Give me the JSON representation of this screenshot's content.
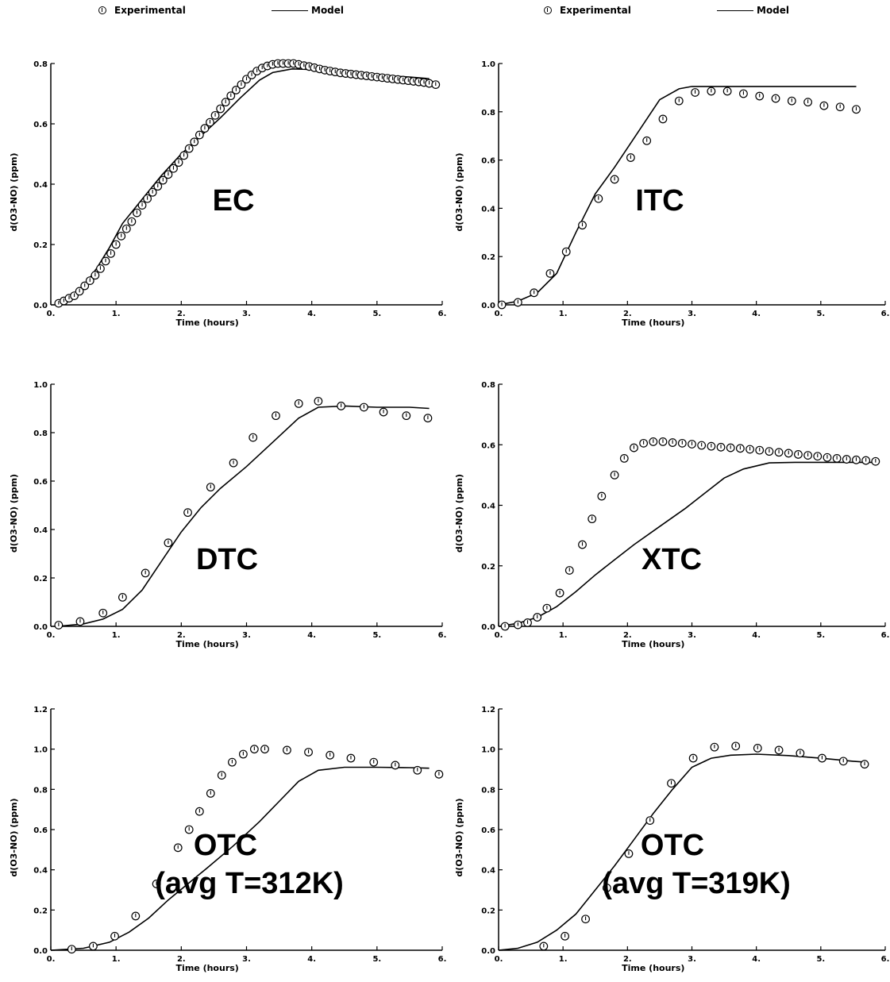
{
  "legend": {
    "experimental_label": "Experimental",
    "model_label": "Model"
  },
  "chart_data": [
    {
      "type": "scatter",
      "title": "EC",
      "xlabel": "Time (hours)",
      "ylabel": "d(O3-NO) (ppm)",
      "xlim": [
        0,
        6
      ],
      "ylim": [
        0,
        0.8
      ],
      "xticks": [
        "0.",
        "1.",
        "2.",
        "3.",
        "4.",
        "5.",
        "6."
      ],
      "yticks": [
        "0.0",
        "0.2",
        "0.4",
        "0.6",
        "0.8"
      ],
      "series": [
        {
          "name": "Experimental",
          "x": [
            0.12,
            0.2,
            0.28,
            0.36,
            0.44,
            0.52,
            0.6,
            0.68,
            0.76,
            0.84,
            0.92,
            1.0,
            1.08,
            1.16,
            1.24,
            1.32,
            1.4,
            1.48,
            1.56,
            1.64,
            1.72,
            1.8,
            1.88,
            1.96,
            2.04,
            2.12,
            2.2,
            2.28,
            2.36,
            2.44,
            2.52,
            2.6,
            2.68,
            2.76,
            2.84,
            2.92,
            3.0,
            3.08,
            3.16,
            3.24,
            3.32,
            3.4,
            3.48,
            3.56,
            3.64,
            3.72,
            3.8,
            3.88,
            3.96,
            4.04,
            4.12,
            4.2,
            4.28,
            4.36,
            4.44,
            4.52,
            4.6,
            4.68,
            4.76,
            4.84,
            4.92,
            5.0,
            5.08,
            5.16,
            5.24,
            5.32,
            5.4,
            5.48,
            5.56,
            5.64,
            5.72,
            5.8,
            5.9
          ],
          "y": [
            0.005,
            0.013,
            0.022,
            0.03,
            0.045,
            0.063,
            0.08,
            0.098,
            0.12,
            0.145,
            0.17,
            0.2,
            0.228,
            0.252,
            0.276,
            0.305,
            0.33,
            0.352,
            0.373,
            0.393,
            0.413,
            0.432,
            0.452,
            0.472,
            0.495,
            0.518,
            0.54,
            0.563,
            0.585,
            0.605,
            0.628,
            0.65,
            0.672,
            0.693,
            0.712,
            0.73,
            0.748,
            0.762,
            0.775,
            0.785,
            0.792,
            0.797,
            0.8,
            0.8,
            0.8,
            0.8,
            0.797,
            0.793,
            0.79,
            0.786,
            0.782,
            0.778,
            0.775,
            0.772,
            0.769,
            0.767,
            0.765,
            0.763,
            0.761,
            0.759,
            0.757,
            0.755,
            0.753,
            0.751,
            0.749,
            0.747,
            0.745,
            0.743,
            0.741,
            0.739,
            0.737,
            0.734,
            0.73
          ]
        },
        {
          "name": "Model",
          "x": [
            0.1,
            0.3,
            0.5,
            0.7,
            0.9,
            1.1,
            1.4,
            1.7,
            2.0,
            2.3,
            2.6,
            2.9,
            3.2,
            3.4,
            3.7,
            4.0,
            4.5,
            5.0,
            5.5,
            5.8
          ],
          "y": [
            0.005,
            0.025,
            0.06,
            0.12,
            0.19,
            0.27,
            0.35,
            0.43,
            0.5,
            0.56,
            0.62,
            0.685,
            0.745,
            0.77,
            0.782,
            0.78,
            0.77,
            0.762,
            0.755,
            0.75
          ]
        }
      ]
    },
    {
      "type": "scatter",
      "title": "ITC",
      "xlabel": "Time (hours)",
      "ylabel": "d(O3-NO) (ppm)",
      "xlim": [
        0,
        6
      ],
      "ylim": [
        0,
        1.0
      ],
      "xticks": [
        "0.",
        "1.",
        "2.",
        "3.",
        "4.",
        "5.",
        "6."
      ],
      "yticks": [
        "0.0",
        "0.2",
        "0.4",
        "0.6",
        "0.8",
        "1.0"
      ],
      "series": [
        {
          "name": "Experimental",
          "x": [
            0.05,
            0.3,
            0.55,
            0.8,
            1.05,
            1.3,
            1.55,
            1.8,
            2.05,
            2.3,
            2.55,
            2.8,
            3.05,
            3.3,
            3.55,
            3.8,
            4.05,
            4.3,
            4.55,
            4.8,
            5.05,
            5.3,
            5.55
          ],
          "y": [
            0.0,
            0.01,
            0.05,
            0.13,
            0.22,
            0.33,
            0.44,
            0.52,
            0.61,
            0.68,
            0.77,
            0.845,
            0.88,
            0.885,
            0.885,
            0.875,
            0.865,
            0.855,
            0.845,
            0.84,
            0.825,
            0.82,
            0.81
          ]
        },
        {
          "name": "Model",
          "x": [
            0.0,
            0.3,
            0.6,
            0.9,
            1.2,
            1.5,
            1.8,
            2.1,
            2.5,
            2.8,
            3.0,
            4.0,
            5.0,
            5.55
          ],
          "y": [
            0.0,
            0.015,
            0.05,
            0.13,
            0.3,
            0.46,
            0.57,
            0.69,
            0.85,
            0.895,
            0.905,
            0.905,
            0.905,
            0.905
          ]
        }
      ]
    },
    {
      "type": "scatter",
      "title": "DTC",
      "xlabel": "Time (hours)",
      "ylabel": "d(O3-NO) (ppm)",
      "xlim": [
        0,
        6
      ],
      "ylim": [
        0,
        1.0
      ],
      "xticks": [
        "0.",
        "1.",
        "2.",
        "3.",
        "4.",
        "5.",
        "6."
      ],
      "yticks": [
        "0.0",
        "0.2",
        "0.4",
        "0.6",
        "0.8",
        "1.0"
      ],
      "series": [
        {
          "name": "Experimental",
          "x": [
            0.12,
            0.45,
            0.8,
            1.1,
            1.45,
            1.8,
            2.1,
            2.45,
            2.8,
            3.1,
            3.45,
            3.8,
            4.1,
            4.45,
            4.8,
            5.1,
            5.45,
            5.78
          ],
          "y": [
            0.005,
            0.02,
            0.055,
            0.12,
            0.22,
            0.345,
            0.47,
            0.575,
            0.675,
            0.78,
            0.87,
            0.92,
            0.93,
            0.91,
            0.905,
            0.885,
            0.87,
            0.86
          ]
        },
        {
          "name": "Model",
          "x": [
            0.1,
            0.5,
            0.8,
            1.1,
            1.4,
            1.7,
            2.0,
            2.3,
            2.6,
            3.0,
            3.4,
            3.8,
            4.1,
            4.5,
            5.0,
            5.5,
            5.8
          ],
          "y": [
            0.0,
            0.01,
            0.03,
            0.07,
            0.15,
            0.27,
            0.39,
            0.49,
            0.57,
            0.66,
            0.76,
            0.86,
            0.905,
            0.91,
            0.905,
            0.905,
            0.9
          ]
        }
      ]
    },
    {
      "type": "scatter",
      "title": "XTC",
      "xlabel": "Time (hours)",
      "ylabel": "d(O3-NO) (ppm)",
      "xlim": [
        0,
        6
      ],
      "ylim": [
        0,
        0.8
      ],
      "xticks": [
        "0.",
        "1.",
        "2.",
        "3.",
        "4.",
        "5.",
        "6."
      ],
      "yticks": [
        "0.0",
        "0.2",
        "0.4",
        "0.6",
        "0.8"
      ],
      "series": [
        {
          "name": "Experimental",
          "x": [
            0.1,
            0.3,
            0.45,
            0.6,
            0.75,
            0.95,
            1.1,
            1.3,
            1.45,
            1.6,
            1.8,
            1.95,
            2.1,
            2.25,
            2.4,
            2.55,
            2.7,
            2.85,
            3.0,
            3.15,
            3.3,
            3.45,
            3.6,
            3.75,
            3.9,
            4.05,
            4.2,
            4.35,
            4.5,
            4.65,
            4.8,
            4.95,
            5.1,
            5.25,
            5.4,
            5.55,
            5.7,
            5.85
          ],
          "y": [
            0.0,
            0.005,
            0.012,
            0.03,
            0.06,
            0.11,
            0.185,
            0.27,
            0.355,
            0.43,
            0.5,
            0.555,
            0.59,
            0.605,
            0.61,
            0.61,
            0.607,
            0.605,
            0.602,
            0.598,
            0.595,
            0.592,
            0.59,
            0.588,
            0.585,
            0.582,
            0.578,
            0.575,
            0.572,
            0.568,
            0.565,
            0.562,
            0.558,
            0.555,
            0.552,
            0.55,
            0.548,
            0.545
          ]
        },
        {
          "name": "Model",
          "x": [
            0.0,
            0.3,
            0.6,
            0.9,
            1.2,
            1.5,
            1.8,
            2.1,
            2.5,
            2.9,
            3.2,
            3.5,
            3.8,
            4.2,
            4.6,
            5.0,
            5.5,
            5.85
          ],
          "y": [
            0.0,
            0.01,
            0.03,
            0.065,
            0.115,
            0.17,
            0.22,
            0.27,
            0.33,
            0.39,
            0.44,
            0.49,
            0.52,
            0.54,
            0.542,
            0.542,
            0.542,
            0.542
          ]
        }
      ]
    },
    {
      "type": "scatter",
      "title": "OTC\n(avg T=312K)",
      "xlabel": "Time (hours)",
      "ylabel": "d(O3-NO) (ppm)",
      "xlim": [
        0,
        6
      ],
      "ylim": [
        0,
        1.2
      ],
      "xticks": [
        "0.",
        "1.",
        "2.",
        "3.",
        "4.",
        "5.",
        "6."
      ],
      "yticks": [
        "0.0",
        "0.2",
        "0.4",
        "0.6",
        "0.8",
        "1.0",
        "1.2"
      ],
      "series": [
        {
          "name": "Experimental",
          "x": [
            0.32,
            0.65,
            0.98,
            1.3,
            1.62,
            1.95,
            2.12,
            2.28,
            2.45,
            2.62,
            2.78,
            2.95,
            3.12,
            3.28,
            3.62,
            3.95,
            4.28,
            4.6,
            4.95,
            5.28,
            5.62,
            5.95
          ],
          "y": [
            0.005,
            0.02,
            0.07,
            0.17,
            0.33,
            0.51,
            0.6,
            0.69,
            0.78,
            0.87,
            0.935,
            0.975,
            1.0,
            1.0,
            0.995,
            0.985,
            0.97,
            0.955,
            0.935,
            0.92,
            0.895,
            0.875
          ]
        },
        {
          "name": "Model",
          "x": [
            0.0,
            0.5,
            0.9,
            1.2,
            1.5,
            1.8,
            2.1,
            2.4,
            2.8,
            3.2,
            3.5,
            3.8,
            4.1,
            4.5,
            5.0,
            5.5,
            5.8
          ],
          "y": [
            0.0,
            0.01,
            0.04,
            0.09,
            0.16,
            0.25,
            0.33,
            0.41,
            0.52,
            0.64,
            0.74,
            0.84,
            0.895,
            0.91,
            0.91,
            0.908,
            0.905
          ]
        }
      ]
    },
    {
      "type": "scatter",
      "title": "OTC\n(avg T=319K)",
      "xlabel": "Time (hours)",
      "ylabel": "d(O3-NO) (ppm)",
      "xlim": [
        0,
        6
      ],
      "ylim": [
        0,
        1.2
      ],
      "xticks": [
        "0.",
        "1.",
        "2.",
        "3.",
        "4.",
        "5.",
        "6."
      ],
      "yticks": [
        "0.0",
        "0.2",
        "0.4",
        "0.6",
        "0.8",
        "1.0",
        "1.2"
      ],
      "series": [
        {
          "name": "Experimental",
          "x": [
            0.7,
            1.03,
            1.35,
            1.68,
            2.02,
            2.35,
            2.68,
            3.02,
            3.35,
            3.68,
            4.02,
            4.35,
            4.68,
            5.02,
            5.35,
            5.68
          ],
          "y": [
            0.02,
            0.07,
            0.155,
            0.31,
            0.48,
            0.645,
            0.83,
            0.955,
            1.01,
            1.015,
            1.005,
            0.995,
            0.98,
            0.955,
            0.94,
            0.925
          ]
        },
        {
          "name": "Model",
          "x": [
            0.0,
            0.3,
            0.6,
            0.9,
            1.2,
            1.5,
            1.8,
            2.1,
            2.4,
            2.7,
            3.0,
            3.3,
            3.6,
            4.0,
            4.5,
            5.0,
            5.5,
            5.7
          ],
          "y": [
            0.0,
            0.01,
            0.04,
            0.1,
            0.18,
            0.3,
            0.42,
            0.55,
            0.68,
            0.8,
            0.91,
            0.955,
            0.97,
            0.975,
            0.968,
            0.955,
            0.94,
            0.935
          ]
        }
      ]
    }
  ]
}
